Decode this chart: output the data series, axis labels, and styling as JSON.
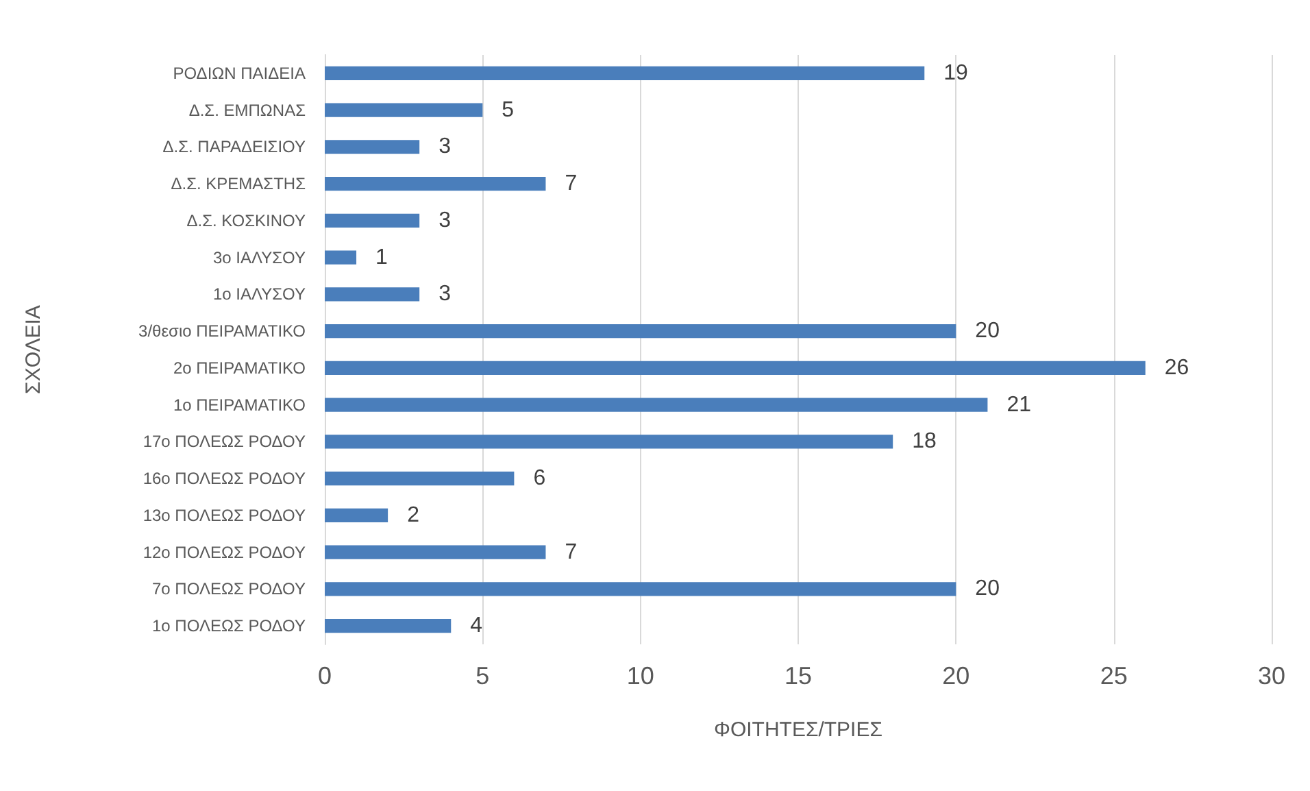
{
  "chart_data": {
    "type": "bar",
    "orientation": "horizontal",
    "xlabel": "ΦΟΙΤΗΤΕΣ/ΤΡΙΕΣ",
    "ylabel": "ΣΧΟΛΕΙΑ",
    "categories": [
      "ΡΟΔΙΩΝ ΠΑΙΔΕΙΑ",
      "Δ.Σ. ΕΜΠΩΝΑΣ",
      "Δ.Σ. ΠΑΡΑΔΕΙΣΙΟΥ",
      "Δ.Σ. ΚΡΕΜΑΣΤΗΣ",
      "Δ.Σ. ΚΟΣΚΙΝΟΥ",
      "3ο ΙΑΛΥΣΟΥ",
      "1ο ΙΑΛΥΣΟΥ",
      "3/θεσιο ΠΕΙΡΑΜΑΤΙΚΟ",
      "2ο ΠΕΙΡΑΜΑΤΙΚΟ",
      "1ο ΠΕΙΡΑΜΑΤΙΚΟ",
      "17ο ΠΟΛΕΩΣ ΡΟΔΟΥ",
      "16ο ΠΟΛΕΩΣ ΡΟΔΟΥ",
      "13ο ΠΟΛΕΩΣ ΡΟΔΟΥ",
      "12ο ΠΟΛΕΩΣ ΡΟΔΟΥ",
      "7ο ΠΟΛΕΩΣ ΡΟΔΟΥ",
      "1ο ΠΟΛΕΩΣ ΡΟΔΟΥ"
    ],
    "values": [
      19,
      5,
      3,
      7,
      3,
      1,
      3,
      20,
      26,
      21,
      18,
      6,
      2,
      7,
      20,
      4
    ],
    "color": "#4a7ebb",
    "xlim": [
      0,
      30
    ],
    "xticks": [
      0,
      5,
      10,
      15,
      20,
      25,
      30
    ],
    "grid": "x",
    "data_labels": true
  }
}
